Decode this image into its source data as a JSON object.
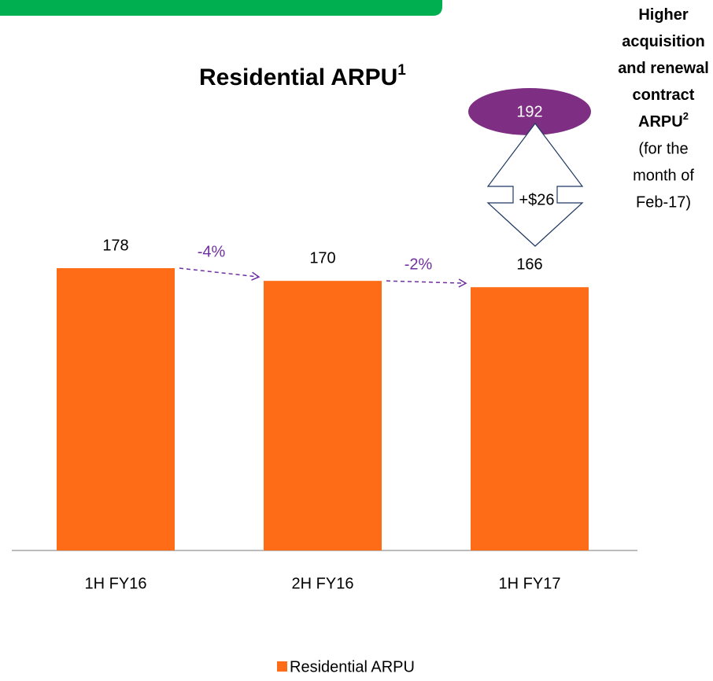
{
  "chart_data": {
    "type": "bar",
    "title": "Residential ARPU",
    "title_footnote": "1",
    "categories": [
      "1H FY16",
      "2H FY16",
      "1H FY17"
    ],
    "series": [
      {
        "name": "Residential ARPU",
        "color": "#ff6c17",
        "values": [
          178,
          170,
          166
        ]
      }
    ],
    "ylim": [
      0,
      300
    ],
    "changes": [
      "-4%",
      "-2%"
    ],
    "highlight_value": 192,
    "highlight_change": "+$26",
    "note_bold_lines": [
      "Higher",
      "acquisition",
      "and renewal",
      "contract",
      "ARPU"
    ],
    "note_footnote": "2",
    "note_lines": [
      "(for the",
      "month of",
      "Feb-17)"
    ]
  }
}
